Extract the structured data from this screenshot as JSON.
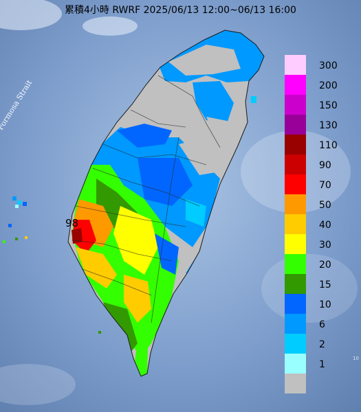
{
  "title": "累積4小時 RWRF 2025/06/13 12:00~06/13 16:00",
  "strait_label": "Formosa Strait",
  "max_value_label": "98",
  "edge_label": "10",
  "legend": {
    "levels": [
      {
        "label": "300",
        "color": "#ffccff"
      },
      {
        "label": "200",
        "color": "#ff00ff"
      },
      {
        "label": "150",
        "color": "#cc00cc"
      },
      {
        "label": "130",
        "color": "#990099"
      },
      {
        "label": "110",
        "color": "#990000"
      },
      {
        "label": "90",
        "color": "#cc0000"
      },
      {
        "label": "70",
        "color": "#ff0000"
      },
      {
        "label": "50",
        "color": "#ff9900"
      },
      {
        "label": "40",
        "color": "#ffcc00"
      },
      {
        "label": "30",
        "color": "#ffff00"
      },
      {
        "label": "20",
        "color": "#33ff00"
      },
      {
        "label": "15",
        "color": "#339900"
      },
      {
        "label": "10",
        "color": "#0066ff"
      },
      {
        "label": "6",
        "color": "#0099ff"
      },
      {
        "label": "2",
        "color": "#00ccff"
      },
      {
        "label": "1",
        "color": "#99ffff"
      },
      {
        "label": "",
        "color": "#c0c0c0"
      }
    ]
  }
}
